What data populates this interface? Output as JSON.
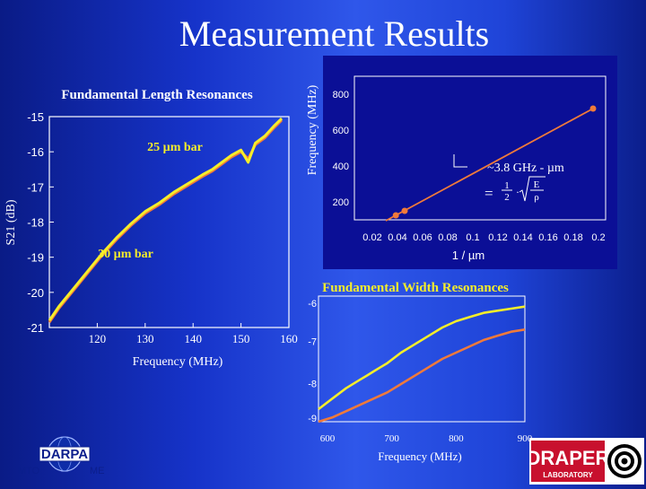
{
  "title": "Measurement Results",
  "colors": {
    "yellow": "#f5ee2a",
    "orange": "#f07a3a",
    "background": "#2545db"
  },
  "chart_data": [
    {
      "type": "line",
      "title": "Fundamental Length Resonances",
      "xlabel": "Frequency (MHz)",
      "ylabel": "S21 (dB)",
      "xlim": [
        110,
        160
      ],
      "ylim": [
        -21,
        -15
      ],
      "xticks": [
        "120",
        "130",
        "140",
        "150",
        "160"
      ],
      "yticks": [
        "-15",
        "-16",
        "-17",
        "-18",
        "-19",
        "-20",
        "-21"
      ],
      "annotations": [
        "25 µm bar",
        "30 µm bar"
      ],
      "series": [
        {
          "name": "25 µm bar",
          "color": "#f5ee2a",
          "x": [
            110,
            112,
            115,
            118,
            121,
            124,
            127,
            130,
            133,
            136,
            139,
            142,
            144,
            146,
            148,
            150,
            151.5,
            153,
            155,
            157,
            158.5
          ],
          "y": [
            -20.8,
            -20.4,
            -19.9,
            -19.4,
            -18.9,
            -18.45,
            -18.05,
            -17.7,
            -17.45,
            -17.15,
            -16.9,
            -16.65,
            -16.5,
            -16.3,
            -16.1,
            -15.95,
            -16.3,
            -15.75,
            -15.55,
            -15.25,
            -15.05
          ]
        },
        {
          "name": "30 µm bar",
          "color": "#f07a3a",
          "x": [
            110,
            112,
            115,
            118,
            121,
            124,
            127,
            130,
            133,
            136,
            139,
            142,
            144,
            146,
            148,
            150,
            151.5,
            153,
            155,
            157,
            158.5
          ],
          "y": [
            -20.85,
            -20.45,
            -19.95,
            -19.45,
            -18.95,
            -18.5,
            -18.1,
            -17.75,
            -17.5,
            -17.2,
            -16.95,
            -16.7,
            -16.55,
            -16.35,
            -16.15,
            -16.0,
            -16.2,
            -15.8,
            -15.6,
            -15.3,
            -15.1
          ]
        }
      ],
      "grid": false,
      "legend": "none"
    },
    {
      "type": "scatter",
      "title": "",
      "xlabel": "1 / µm",
      "ylabel": "Frequency (MHz)",
      "xlim": [
        0,
        0.2
      ],
      "ylim": [
        100,
        900
      ],
      "xticks": [
        "0.02",
        "0.04",
        "0.06",
        "0.08",
        "0.1",
        "0.12",
        "0.14",
        "0.16",
        "0.18",
        "0.2"
      ],
      "yticks": [
        "200",
        "400",
        "600",
        "800"
      ],
      "annotation": "~3.8 GHz - µm",
      "formula": {
        "equals": "=",
        "fraction": "1/2",
        "radicand": "E/ρ"
      },
      "series": [
        {
          "name": "fit",
          "color": "#f07a3a",
          "x": [
            0.025,
            0.19
          ],
          "y": [
            95,
            720
          ]
        },
        {
          "name": "data",
          "color": "#f07a3a",
          "x": [
            0.033,
            0.04,
            0.19
          ],
          "y": [
            125,
            150,
            720
          ]
        }
      ],
      "grid": false,
      "legend": "none"
    },
    {
      "type": "line",
      "title": "Fundamental Width Resonances",
      "xlabel": "Frequency (MHz)",
      "ylabel": "",
      "xlim": [
        600,
        900
      ],
      "ylim": [
        -9,
        -6
      ],
      "xticks": [
        "600",
        "700",
        "800",
        "900"
      ],
      "yticks": [
        "-6",
        "-7",
        "-8",
        "-9"
      ],
      "series": [
        {
          "name": "",
          "color": "#f5ee2a",
          "x": [
            600,
            620,
            640,
            660,
            670,
            680,
            690,
            700,
            720,
            740,
            760,
            780,
            800,
            820,
            840,
            860,
            880,
            900
          ],
          "y": [
            -8.7,
            -8.45,
            -8.2,
            -8.0,
            -7.9,
            -7.8,
            -7.7,
            -7.6,
            -7.35,
            -7.15,
            -6.95,
            -6.75,
            -6.6,
            -6.5,
            -6.4,
            -6.35,
            -6.3,
            -6.25
          ]
        },
        {
          "name": "",
          "color": "#f07a3a",
          "x": [
            600,
            620,
            640,
            660,
            680,
            700,
            720,
            740,
            760,
            780,
            800,
            820,
            840,
            860,
            880,
            900
          ],
          "y": [
            -9.0,
            -8.9,
            -8.75,
            -8.6,
            -8.45,
            -8.3,
            -8.1,
            -7.9,
            -7.7,
            -7.5,
            -7.35,
            -7.2,
            -7.05,
            -6.95,
            -6.85,
            -6.8
          ]
        }
      ],
      "grid": false,
      "legend": "none"
    }
  ],
  "logos": {
    "darpa": {
      "text": "DARPA",
      "left_label": "MTO",
      "right_label": "MEMS"
    },
    "draper": {
      "text": "DRAPER",
      "subtext": "LABORATORY"
    }
  }
}
